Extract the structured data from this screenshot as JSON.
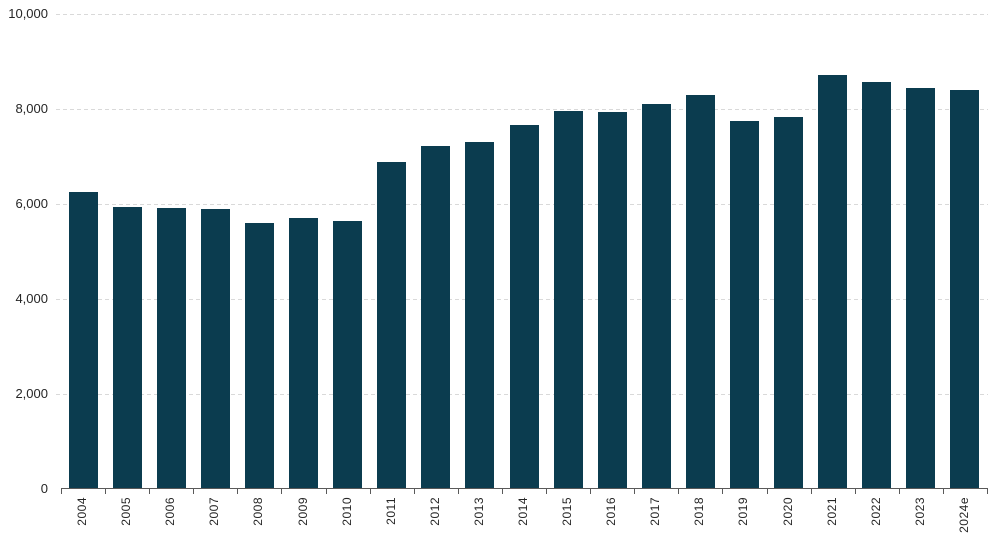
{
  "chart_data": {
    "type": "bar",
    "title": "",
    "xlabel": "",
    "ylabel": "",
    "categories": [
      "2004",
      "2005",
      "2006",
      "2007",
      "2008",
      "2009",
      "2010",
      "2011",
      "2012",
      "2013",
      "2014",
      "2015",
      "2016",
      "2017",
      "2018",
      "2019",
      "2020",
      "2021",
      "2022",
      "2023",
      "2024e"
    ],
    "values": [
      6260,
      5940,
      5920,
      5890,
      5610,
      5700,
      5650,
      6880,
      7220,
      7310,
      7670,
      7950,
      7940,
      8100,
      8290,
      7750,
      7830,
      8710,
      8570,
      8440,
      8410
    ],
    "ylim": [
      0,
      10000
    ],
    "y_tick_values": [
      0,
      2000,
      4000,
      6000,
      8000,
      10000
    ],
    "y_tick_labels": [
      "0",
      "2,000",
      "4,000",
      "6,000",
      "8,000",
      "10,000"
    ],
    "grid": "horizontal-dashed",
    "legend_position": "none",
    "x_label_rotation": -90
  },
  "colors": {
    "bar": "#0b3c4f",
    "gridline": "#d9d9d9",
    "axis": "#595959",
    "tick_text": "#262626",
    "background": "#ffffff"
  }
}
